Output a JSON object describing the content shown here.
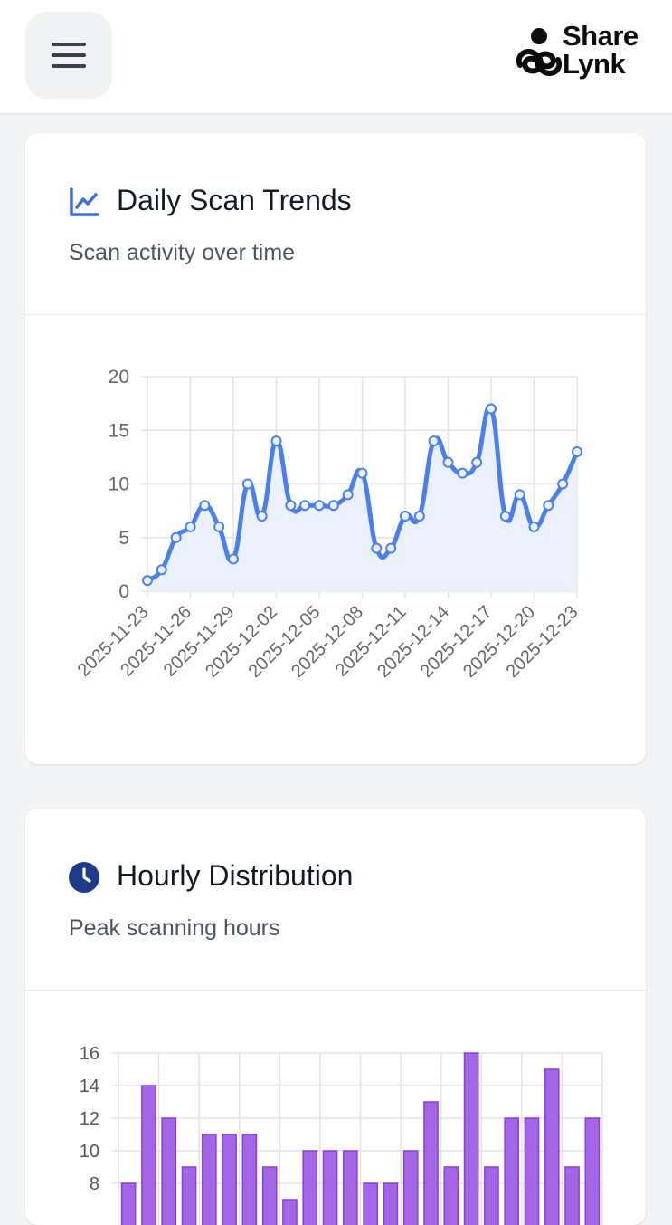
{
  "header": {
    "menu_icon": "hamburger-menu-icon",
    "logo": {
      "line1": "Share",
      "line2": "Lynk"
    }
  },
  "daily_card": {
    "icon": "line-chart-icon",
    "title": "Daily Scan Trends",
    "subtitle": "Scan activity over time"
  },
  "hourly_card": {
    "icon": "clock-icon",
    "title": "Hourly Distribution",
    "subtitle": "Peak scanning hours"
  },
  "colors": {
    "line": "#4a80e8",
    "area_fill": "#eaf0fc",
    "bar_fill": "#a466e6",
    "bar_stroke": "#8a3fd6",
    "grid": "#e3e3e3",
    "clock_icon": "#1e3a8a",
    "chart_icon": "#3b6fe0"
  },
  "chart_data": [
    {
      "type": "line",
      "x": [
        "2025-11-23",
        "2025-11-24",
        "2025-11-25",
        "2025-11-26",
        "2025-11-27",
        "2025-11-28",
        "2025-11-29",
        "2025-11-30",
        "2025-12-01",
        "2025-12-02",
        "2025-12-03",
        "2025-12-04",
        "2025-12-05",
        "2025-12-06",
        "2025-12-07",
        "2025-12-08",
        "2025-12-09",
        "2025-12-10",
        "2025-12-11",
        "2025-12-12",
        "2025-12-13",
        "2025-12-14",
        "2025-12-15",
        "2025-12-16",
        "2025-12-17",
        "2025-12-18",
        "2025-12-19",
        "2025-12-20",
        "2025-12-21",
        "2025-12-22",
        "2025-12-23"
      ],
      "xtick_labels": [
        "2025-11-23",
        "2025-11-26",
        "2025-11-29",
        "2025-12-02",
        "2025-12-05",
        "2025-12-08",
        "2025-12-11",
        "2025-12-14",
        "2025-12-17",
        "2025-12-20",
        "2025-12-23"
      ],
      "values": [
        1,
        2,
        5,
        6,
        8,
        6,
        3,
        10,
        7,
        14,
        8,
        8,
        8,
        8,
        9,
        11,
        4,
        4,
        7,
        7,
        14,
        12,
        11,
        12,
        17,
        7,
        9,
        6,
        8,
        10,
        13
      ],
      "ylim": [
        0,
        20
      ],
      "yticks": [
        "0",
        "5",
        "10",
        "15",
        "20"
      ],
      "grid": true,
      "fill": true
    },
    {
      "type": "bar",
      "values": [
        8,
        14,
        12,
        9,
        11,
        11,
        11,
        9,
        7,
        10,
        10,
        10,
        8,
        8,
        10,
        13,
        9,
        16,
        9,
        12,
        12,
        15,
        9,
        12
      ],
      "yticks": [
        "8",
        "10",
        "12",
        "14",
        "16"
      ],
      "grid": true
    }
  ]
}
